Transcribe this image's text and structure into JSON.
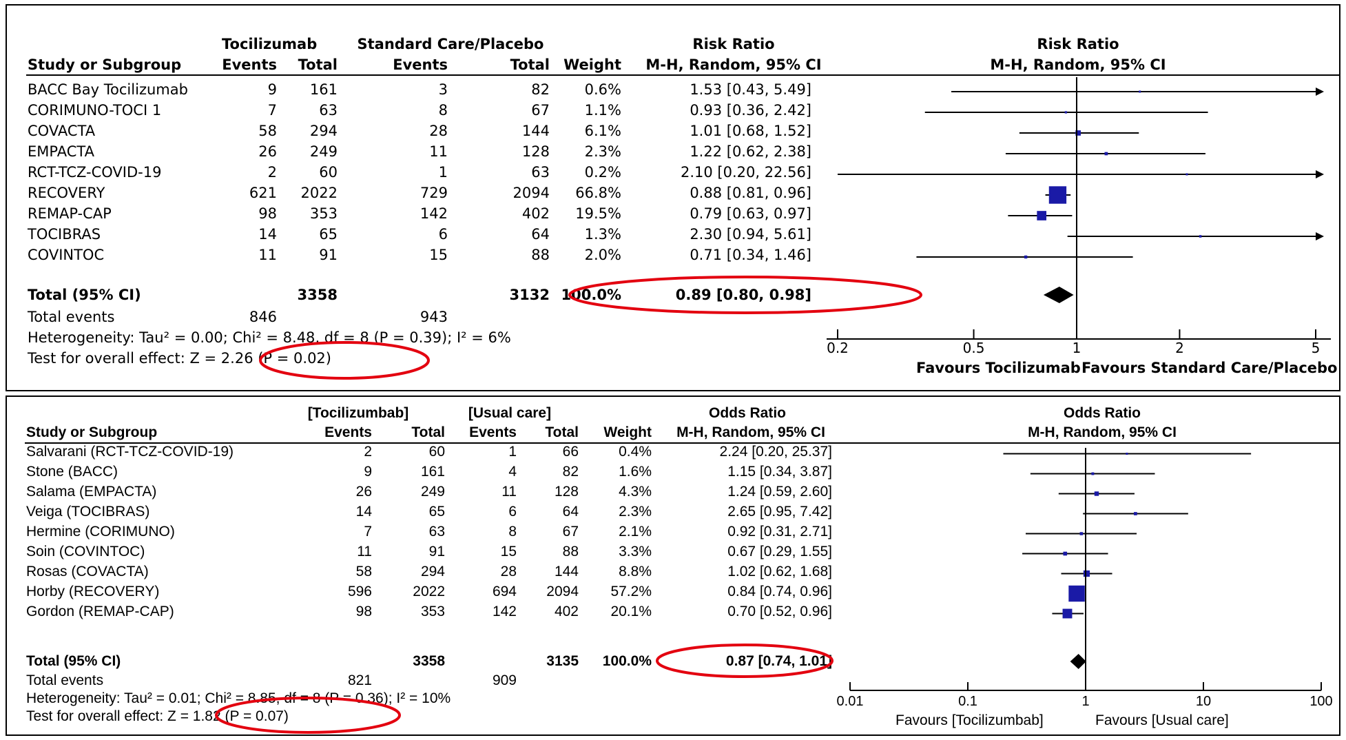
{
  "chart_data": [
    {
      "type": "forest",
      "header": {
        "study_col": "Study or Subgroup",
        "group1": "Tocilizumab",
        "group2": "Standard Care/Placebo",
        "events": "Events",
        "total": "Total",
        "weight": "Weight",
        "effect_title": "Risk Ratio",
        "effect_method": "M-H, Random, 95% CI",
        "plot_title": "Risk Ratio",
        "plot_method": "M-H, Random, 95% CI"
      },
      "studies": [
        {
          "name": "BACC Bay Tocilizumab",
          "e1": "9",
          "t1": "161",
          "e2": "3",
          "t2": "82",
          "weight": "0.6%",
          "ci": "1.53 [0.43, 5.49]",
          "est": 1.53,
          "lo": 0.43,
          "hi": 5.49,
          "w": 0.6
        },
        {
          "name": "CORIMUNO-TOCI 1",
          "e1": "7",
          "t1": "63",
          "e2": "8",
          "t2": "67",
          "weight": "1.1%",
          "ci": "0.93 [0.36, 2.42]",
          "est": 0.93,
          "lo": 0.36,
          "hi": 2.42,
          "w": 1.1
        },
        {
          "name": "COVACTA",
          "e1": "58",
          "t1": "294",
          "e2": "28",
          "t2": "144",
          "weight": "6.1%",
          "ci": "1.01 [0.68, 1.52]",
          "est": 1.01,
          "lo": 0.68,
          "hi": 1.52,
          "w": 6.1
        },
        {
          "name": "EMPACTA",
          "e1": "26",
          "t1": "249",
          "e2": "11",
          "t2": "128",
          "weight": "2.3%",
          "ci": "1.22 [0.62, 2.38]",
          "est": 1.22,
          "lo": 0.62,
          "hi": 2.38,
          "w": 2.3
        },
        {
          "name": "RCT-TCZ-COVID-19",
          "e1": "2",
          "t1": "60",
          "e2": "1",
          "t2": "63",
          "weight": "0.2%",
          "ci": "2.10 [0.20, 22.56]",
          "est": 2.1,
          "lo": 0.2,
          "hi": 22.56,
          "w": 0.2
        },
        {
          "name": "RECOVERY",
          "e1": "621",
          "t1": "2022",
          "e2": "729",
          "t2": "2094",
          "weight": "66.8%",
          "ci": "0.88 [0.81, 0.96]",
          "est": 0.88,
          "lo": 0.81,
          "hi": 0.96,
          "w": 66.8
        },
        {
          "name": "REMAP-CAP",
          "e1": "98",
          "t1": "353",
          "e2": "142",
          "t2": "402",
          "weight": "19.5%",
          "ci": "0.79 [0.63, 0.97]",
          "est": 0.79,
          "lo": 0.63,
          "hi": 0.97,
          "w": 19.5
        },
        {
          "name": "TOCIBRAS",
          "e1": "14",
          "t1": "65",
          "e2": "6",
          "t2": "64",
          "weight": "1.3%",
          "ci": "2.30 [0.94, 5.61]",
          "est": 2.3,
          "lo": 0.94,
          "hi": 5.61,
          "w": 1.3
        },
        {
          "name": "COVINTOC",
          "e1": "11",
          "t1": "91",
          "e2": "15",
          "t2": "88",
          "weight": "2.0%",
          "ci": "0.71 [0.34, 1.46]",
          "est": 0.71,
          "lo": 0.34,
          "hi": 1.46,
          "w": 2.0
        }
      ],
      "total": {
        "label": "Total (95% CI)",
        "t1": "3358",
        "t2": "3132",
        "weight": "100.0%",
        "ci": "0.89 [0.80, 0.98]",
        "est": 0.89,
        "lo": 0.8,
        "hi": 0.98
      },
      "total_events": {
        "label": "Total events",
        "e1": "846",
        "e2": "943"
      },
      "heterogeneity": "Heterogeneity: Tau² = 0.00; Chi² = 8.48, df = 8 (P = 0.39); I² = 6%",
      "overall_effect": "Test for overall effect: Z = 2.26 (P = 0.02)",
      "x_scale": "log",
      "xlim": [
        0.2,
        5
      ],
      "ticks": [
        "0.2",
        "0.5",
        "1",
        "2",
        "5"
      ],
      "favours_left": "Favours Tocilizumab",
      "favours_right": "Favours Standard Care/Placebo"
    },
    {
      "type": "forest",
      "header": {
        "study_col": "Study or Subgroup",
        "group1": "[Tocilizumbab]",
        "group2": "[Usual care]",
        "events": "Events",
        "total": "Total",
        "weight": "Weight",
        "effect_title": "Odds Ratio",
        "effect_method": "M-H, Random, 95% CI",
        "plot_title": "Odds Ratio",
        "plot_method": "M-H, Random, 95% CI"
      },
      "studies": [
        {
          "name": "Salvarani (RCT-TCZ-COVID-19)",
          "e1": "2",
          "t1": "60",
          "e2": "1",
          "t2": "66",
          "weight": "0.4%",
          "ci": "2.24 [0.20, 25.37]",
          "est": 2.24,
          "lo": 0.2,
          "hi": 25.37,
          "w": 0.4
        },
        {
          "name": "Stone (BACC)",
          "e1": "9",
          "t1": "161",
          "e2": "4",
          "t2": "82",
          "weight": "1.6%",
          "ci": "1.15 [0.34, 3.87]",
          "est": 1.15,
          "lo": 0.34,
          "hi": 3.87,
          "w": 1.6
        },
        {
          "name": "Salama (EMPACTA)",
          "e1": "26",
          "t1": "249",
          "e2": "11",
          "t2": "128",
          "weight": "4.3%",
          "ci": "1.24 [0.59, 2.60]",
          "est": 1.24,
          "lo": 0.59,
          "hi": 2.6,
          "w": 4.3
        },
        {
          "name": "Veiga (TOCIBRAS)",
          "e1": "14",
          "t1": "65",
          "e2": "6",
          "t2": "64",
          "weight": "2.3%",
          "ci": "2.65 [0.95, 7.42]",
          "est": 2.65,
          "lo": 0.95,
          "hi": 7.42,
          "w": 2.3
        },
        {
          "name": "Hermine (CORIMUNO)",
          "e1": "7",
          "t1": "63",
          "e2": "8",
          "t2": "67",
          "weight": "2.1%",
          "ci": "0.92 [0.31, 2.71]",
          "est": 0.92,
          "lo": 0.31,
          "hi": 2.71,
          "w": 2.1
        },
        {
          "name": "Soin (COVINTOC)",
          "e1": "11",
          "t1": "91",
          "e2": "15",
          "t2": "88",
          "weight": "3.3%",
          "ci": "0.67 [0.29, 1.55]",
          "est": 0.67,
          "lo": 0.29,
          "hi": 1.55,
          "w": 3.3
        },
        {
          "name": "Rosas (COVACTA)",
          "e1": "58",
          "t1": "294",
          "e2": "28",
          "t2": "144",
          "weight": "8.8%",
          "ci": "1.02 [0.62, 1.68]",
          "est": 1.02,
          "lo": 0.62,
          "hi": 1.68,
          "w": 8.8
        },
        {
          "name": "Horby (RECOVERY)",
          "e1": "596",
          "t1": "2022",
          "e2": "694",
          "t2": "2094",
          "weight": "57.2%",
          "ci": "0.84 [0.74, 0.96]",
          "est": 0.84,
          "lo": 0.74,
          "hi": 0.96,
          "w": 57.2
        },
        {
          "name": "Gordon (REMAP-CAP)",
          "e1": "98",
          "t1": "353",
          "e2": "142",
          "t2": "402",
          "weight": "20.1%",
          "ci": "0.70 [0.52, 0.96]",
          "est": 0.7,
          "lo": 0.52,
          "hi": 0.96,
          "w": 20.1
        }
      ],
      "total": {
        "label": "Total (95% CI)",
        "t1": "3358",
        "t2": "3135",
        "weight": "100.0%",
        "ci": "0.87 [0.74, 1.01]",
        "est": 0.87,
        "lo": 0.74,
        "hi": 1.01
      },
      "total_events": {
        "label": "Total events",
        "e1": "821",
        "e2": "909"
      },
      "heterogeneity": "Heterogeneity: Tau² = 0.01; Chi² = 8.85, df = 8 (P = 0.36); I² = 10%",
      "overall_effect": "Test for overall effect: Z = 1.82 (P = 0.07)",
      "x_scale": "log",
      "xlim": [
        0.01,
        100
      ],
      "ticks": [
        "0.01",
        "0.1",
        "1",
        "10",
        "100"
      ],
      "favours_left": "Favours [Tocilizumbab]",
      "favours_right": "Favours [Usual care]"
    }
  ],
  "colors": {
    "marker": "#1a1aa6",
    "ci_line": "#000000",
    "highlight": "#e3000f",
    "diamond": "#000000"
  }
}
